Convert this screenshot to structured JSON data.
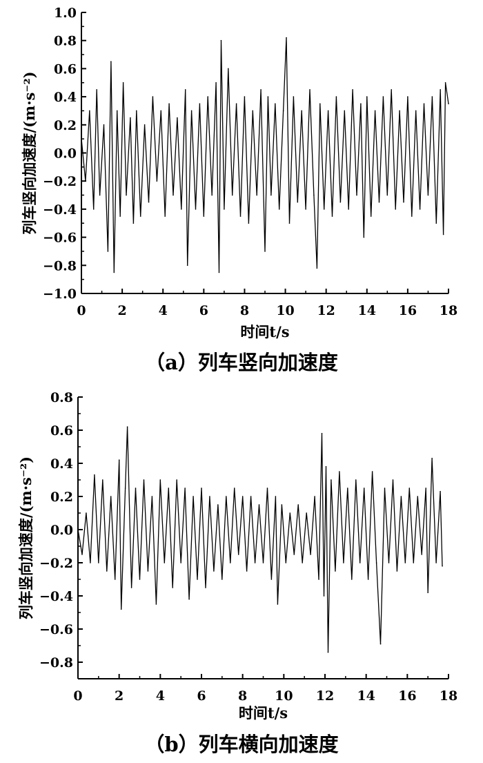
{
  "chart_data": [
    {
      "type": "line",
      "caption": "（a）列车竖向加速度",
      "xlabel": "时间t/s",
      "ylabel": "列车竖向加速度/(m·s⁻²)",
      "xlim": [
        0,
        18
      ],
      "ylim": [
        -1.0,
        1.0
      ],
      "xticks": [
        0,
        2,
        4,
        6,
        8,
        10,
        12,
        14,
        16,
        18
      ],
      "xtick_labels": [
        "0",
        "2",
        "4",
        "6",
        "8",
        "10",
        "12",
        "14",
        "16",
        "18"
      ],
      "yticks": [
        -1.0,
        -0.8,
        -0.6,
        -0.4,
        -0.2,
        0.0,
        0.2,
        0.4,
        0.6,
        0.8,
        1.0
      ],
      "ytick_labels": [
        "−1.0",
        "−0.8",
        "−0.6",
        "−0.4",
        "−0.2",
        "0.0",
        "0.2",
        "0.4",
        "0.6",
        "0.8",
        "1.0"
      ],
      "grid": false,
      "series": [
        {
          "x": [
            0.0,
            0.2,
            0.4,
            0.6,
            0.75,
            0.9,
            1.1,
            1.3,
            1.45,
            1.6,
            1.75,
            1.9,
            2.05,
            2.2,
            2.4,
            2.55,
            2.7,
            2.9,
            3.1,
            3.3,
            3.5,
            3.7,
            3.9,
            4.1,
            4.3,
            4.5,
            4.7,
            4.9,
            5.1,
            5.2,
            5.4,
            5.6,
            5.8,
            6.0,
            6.2,
            6.4,
            6.6,
            6.75,
            6.85,
            7.0,
            7.2,
            7.4,
            7.6,
            7.8,
            8.0,
            8.2,
            8.4,
            8.6,
            8.8,
            9.0,
            9.15,
            9.3,
            9.5,
            9.7,
            9.9,
            10.05,
            10.2,
            10.4,
            10.6,
            10.8,
            11.0,
            11.2,
            11.4,
            11.55,
            11.7,
            11.9,
            12.1,
            12.3,
            12.5,
            12.7,
            12.9,
            13.1,
            13.3,
            13.5,
            13.7,
            13.85,
            14.0,
            14.2,
            14.4,
            14.6,
            14.8,
            15.0,
            15.2,
            15.4,
            15.6,
            15.8,
            16.0,
            16.2,
            16.4,
            16.6,
            16.8,
            17.0,
            17.2,
            17.4,
            17.6,
            17.75,
            17.85,
            18.0
          ],
          "y": [
            0.1,
            -0.2,
            0.3,
            -0.4,
            0.45,
            -0.3,
            0.2,
            -0.7,
            0.65,
            -0.85,
            0.3,
            -0.45,
            0.5,
            -0.3,
            0.25,
            -0.5,
            0.3,
            -0.45,
            0.2,
            -0.35,
            0.4,
            -0.2,
            0.3,
            -0.45,
            0.35,
            -0.3,
            0.25,
            -0.4,
            0.45,
            -0.8,
            0.3,
            -0.4,
            0.35,
            -0.45,
            0.4,
            -0.3,
            0.5,
            -0.85,
            0.8,
            -0.4,
            0.6,
            -0.3,
            0.35,
            -0.45,
            0.4,
            -0.5,
            0.3,
            -0.3,
            0.45,
            -0.7,
            0.4,
            -0.3,
            0.35,
            -0.4,
            0.3,
            0.82,
            -0.5,
            0.4,
            -0.35,
            0.3,
            -0.4,
            0.45,
            -0.3,
            -0.82,
            0.35,
            -0.4,
            0.3,
            -0.45,
            0.4,
            -0.35,
            0.3,
            -0.4,
            0.45,
            -0.3,
            0.35,
            -0.6,
            0.4,
            -0.45,
            0.3,
            -0.35,
            0.4,
            -0.3,
            0.45,
            -0.4,
            0.3,
            -0.35,
            0.4,
            -0.45,
            0.3,
            -0.4,
            0.35,
            -0.3,
            0.4,
            -0.5,
            0.45,
            -0.58,
            0.5,
            0.35
          ]
        }
      ]
    },
    {
      "type": "line",
      "caption": "（b）列车横向加速度",
      "xlabel": "时间t/s",
      "ylabel": "列车竖向加速度/(m·s⁻²)",
      "xlim": [
        0,
        18
      ],
      "ylim": [
        -0.9,
        0.8
      ],
      "xticks": [
        0,
        2,
        4,
        6,
        8,
        10,
        12,
        14,
        16,
        18
      ],
      "xtick_labels": [
        "0",
        "2",
        "4",
        "6",
        "8",
        "10",
        "12",
        "14",
        "16",
        "18"
      ],
      "yticks": [
        -0.8,
        -0.6,
        -0.4,
        -0.2,
        0.0,
        0.2,
        0.4,
        0.6,
        0.8
      ],
      "ytick_labels": [
        "−0.8",
        "−0.6",
        "−0.4",
        "−0.2",
        "0.0",
        "0.2",
        "0.4",
        "0.6",
        "0.8"
      ],
      "grid": false,
      "series": [
        {
          "x": [
            0.0,
            0.2,
            0.4,
            0.6,
            0.8,
            1.0,
            1.2,
            1.4,
            1.6,
            1.8,
            2.0,
            2.1,
            2.3,
            2.4,
            2.6,
            2.8,
            3.0,
            3.2,
            3.4,
            3.6,
            3.8,
            4.0,
            4.2,
            4.4,
            4.6,
            4.8,
            5.0,
            5.2,
            5.4,
            5.6,
            5.8,
            6.0,
            6.2,
            6.4,
            6.6,
            6.8,
            7.0,
            7.2,
            7.4,
            7.6,
            7.8,
            8.0,
            8.2,
            8.4,
            8.6,
            8.8,
            9.0,
            9.2,
            9.4,
            9.6,
            9.7,
            9.9,
            10.1,
            10.3,
            10.5,
            10.7,
            10.9,
            11.1,
            11.3,
            11.5,
            11.7,
            11.85,
            11.95,
            12.05,
            12.15,
            12.3,
            12.5,
            12.7,
            12.9,
            13.1,
            13.3,
            13.5,
            13.7,
            13.9,
            14.1,
            14.3,
            14.5,
            14.7,
            14.9,
            15.1,
            15.3,
            15.5,
            15.7,
            15.9,
            16.1,
            16.3,
            16.5,
            16.7,
            16.9,
            17.0,
            17.2,
            17.4,
            17.6,
            17.7
          ],
          "y": [
            0.0,
            -0.15,
            0.1,
            -0.2,
            0.33,
            -0.2,
            0.3,
            -0.25,
            0.2,
            -0.3,
            0.42,
            -0.48,
            0.25,
            0.62,
            -0.35,
            0.25,
            -0.3,
            0.3,
            -0.25,
            0.2,
            -0.45,
            0.3,
            -0.2,
            0.25,
            -0.35,
            0.3,
            -0.2,
            0.25,
            -0.42,
            0.2,
            -0.3,
            0.25,
            -0.35,
            0.2,
            -0.25,
            0.15,
            -0.3,
            0.2,
            -0.2,
            0.25,
            -0.15,
            0.2,
            -0.25,
            0.2,
            -0.2,
            0.15,
            -0.2,
            0.25,
            -0.3,
            0.2,
            -0.45,
            0.15,
            -0.2,
            0.1,
            -0.15,
            0.15,
            -0.2,
            0.1,
            -0.15,
            0.2,
            -0.3,
            0.58,
            -0.4,
            0.38,
            -0.74,
            0.3,
            -0.25,
            0.35,
            -0.2,
            0.25,
            -0.3,
            0.3,
            -0.2,
            0.25,
            -0.3,
            0.35,
            -0.2,
            -0.69,
            0.25,
            -0.2,
            0.3,
            -0.25,
            0.2,
            -0.2,
            0.25,
            -0.2,
            0.2,
            -0.15,
            0.25,
            -0.38,
            0.43,
            -0.2,
            0.23,
            -0.22
          ]
        }
      ]
    }
  ]
}
